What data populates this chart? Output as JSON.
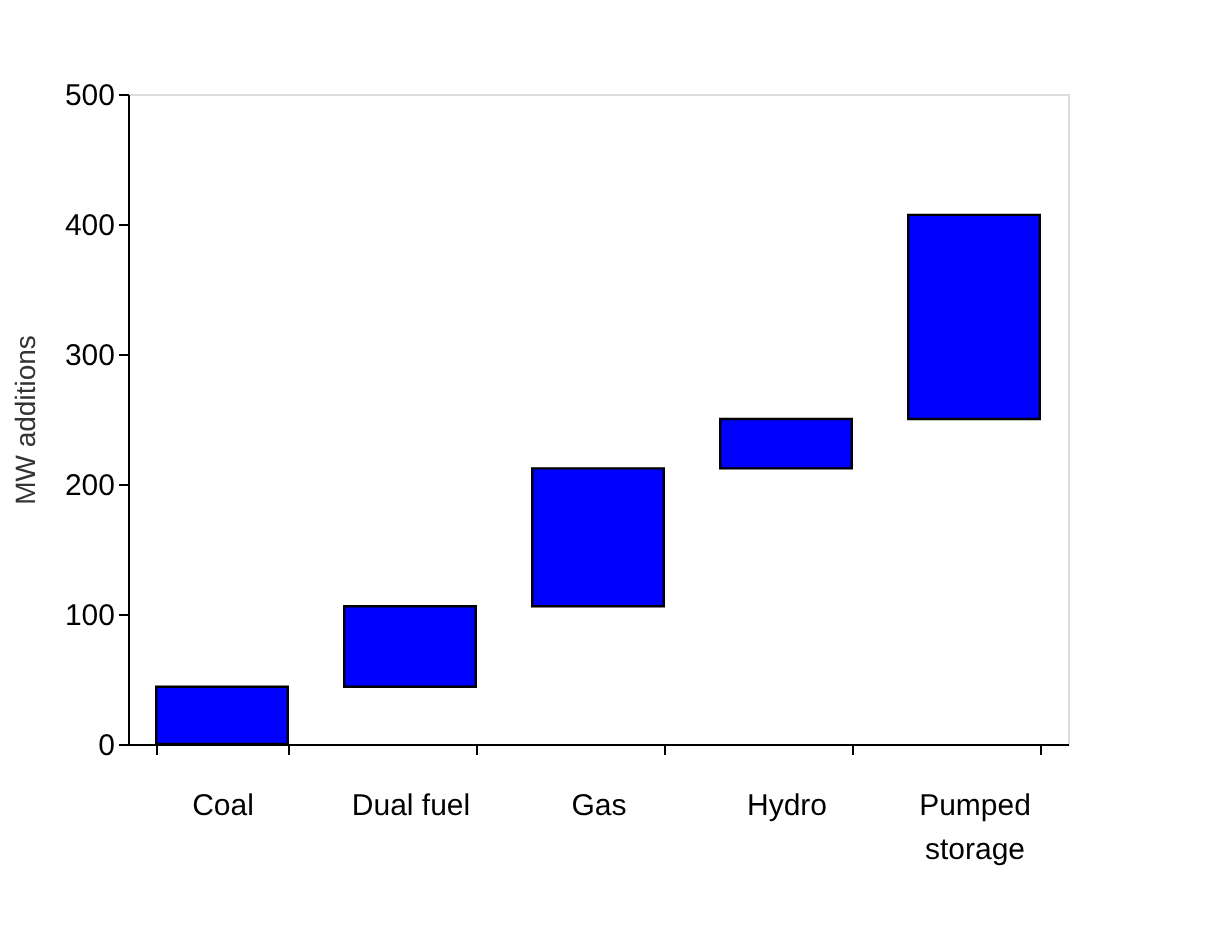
{
  "chart_data": {
    "type": "bar",
    "ylabel": "MW additions",
    "categories": [
      "Coal",
      "Dual fuel",
      "Gas",
      "Hydro",
      "Pumped storage"
    ],
    "values": [
      44,
      62,
      106,
      38,
      157
    ],
    "base": [
      0,
      44,
      106,
      212,
      250
    ],
    "color": "#0000ff",
    "ylim": [
      0,
      500
    ],
    "yticks": [
      0,
      100,
      200,
      300,
      400,
      500
    ],
    "grid": false
  }
}
